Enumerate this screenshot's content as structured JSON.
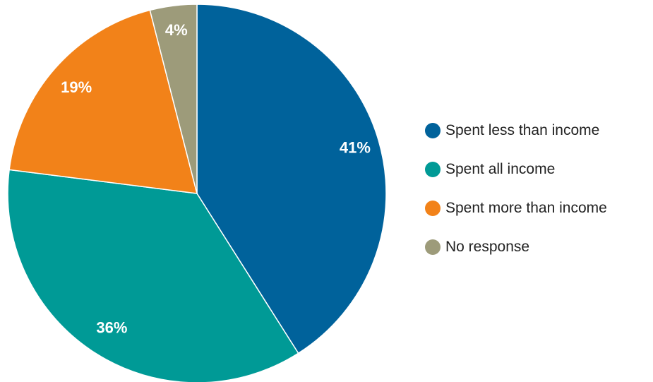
{
  "chart_data": {
    "type": "pie",
    "title": "",
    "slices": [
      {
        "label": "Spent less than income",
        "value": 41,
        "value_label": "41%",
        "color": "#00629b"
      },
      {
        "label": "Spent all income",
        "value": 36,
        "value_label": "36%",
        "color": "#009a96"
      },
      {
        "label": "Spent more than income",
        "value": 19,
        "value_label": "19%",
        "color": "#f28219"
      },
      {
        "label": "No response",
        "value": 4,
        "value_label": "4%",
        "color": "#9d9b7a"
      }
    ],
    "legend_position": "right",
    "start": "12 o'clock",
    "direction": "clockwise"
  }
}
